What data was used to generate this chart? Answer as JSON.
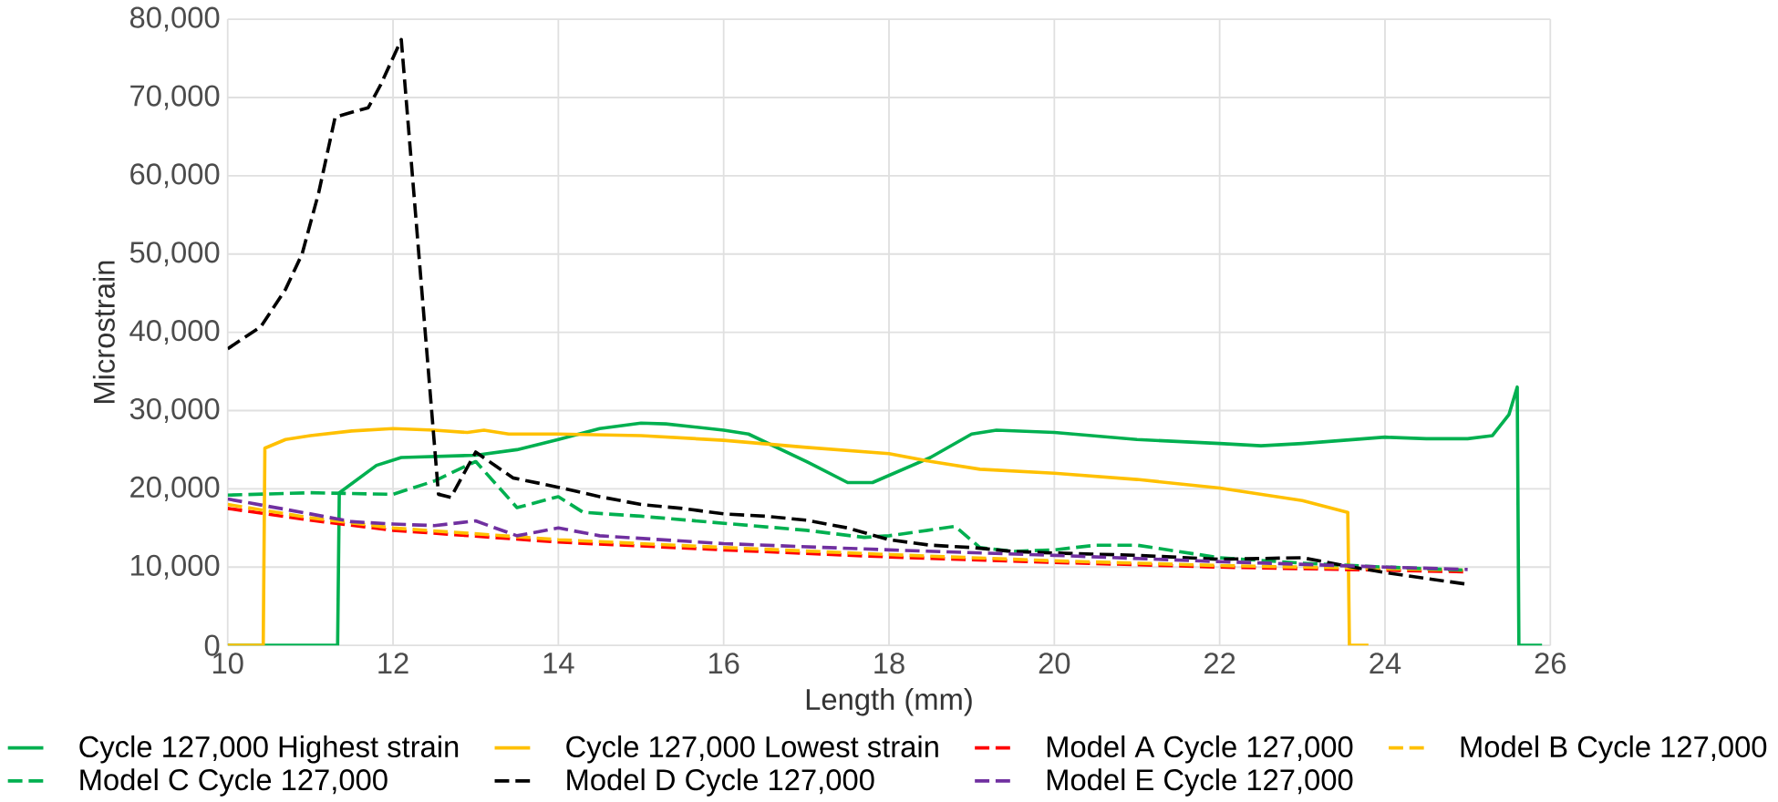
{
  "chart_data": {
    "type": "line",
    "xlabel": "Length (mm)",
    "ylabel": "Microstrain",
    "xlim": [
      10,
      26
    ],
    "xticks": [
      10,
      12,
      14,
      16,
      18,
      20,
      22,
      24,
      26
    ],
    "ylim": [
      0,
      80000
    ],
    "yticks": [
      {
        "value": 0,
        "label": "0"
      },
      {
        "value": 10000,
        "label": "10,000"
      },
      {
        "value": 20000,
        "label": "20,000"
      },
      {
        "value": 30000,
        "label": "30,000"
      },
      {
        "value": 40000,
        "label": "40,000"
      },
      {
        "value": 50000,
        "label": "50,000"
      },
      {
        "value": 60000,
        "label": "60,000"
      },
      {
        "value": 70000,
        "label": "70,000"
      },
      {
        "value": 80000,
        "label": "80,000"
      }
    ],
    "grid": true,
    "legend": "bottom",
    "series": [
      {
        "name": "Cycle 127,000 Highest strain",
        "color": "#00b050",
        "line_style": "solid",
        "x": [
          10,
          11.33,
          11.35,
          11.8,
          12.1,
          13,
          13.5,
          14,
          14.5,
          15,
          15.3,
          16,
          16.3,
          17,
          17.5,
          17.8,
          18.5,
          19,
          19.3,
          20,
          21,
          22,
          22.5,
          23,
          24,
          24.5,
          25,
          25.3,
          25.5,
          25.6,
          25.62,
          25.9
        ],
        "values": [
          0,
          0,
          19500,
          23000,
          24000,
          24300,
          25000,
          26300,
          27700,
          28400,
          28300,
          27500,
          27000,
          23500,
          20800,
          20800,
          24000,
          27000,
          27500,
          27200,
          26300,
          25800,
          25500,
          25800,
          26600,
          26400,
          26400,
          26800,
          29500,
          33000,
          0,
          0
        ]
      },
      {
        "name": "Cycle 127,000 Lowest strain",
        "color": "#ffc000",
        "line_style": "solid",
        "x": [
          10,
          10.43,
          10.45,
          10.7,
          11,
          11.5,
          12,
          12.5,
          12.9,
          13.1,
          13.4,
          14,
          15,
          16,
          17,
          18,
          18.5,
          19.1,
          20,
          21,
          22,
          23,
          23.55,
          23.57,
          23.8
        ],
        "values": [
          0,
          0,
          25200,
          26300,
          26800,
          27400,
          27700,
          27500,
          27200,
          27500,
          27000,
          27000,
          26800,
          26200,
          25300,
          24500,
          23500,
          22500,
          22000,
          21200,
          20100,
          18500,
          17000,
          0,
          0
        ]
      },
      {
        "name": "Model A Cycle 127,000",
        "color": "#ff0000",
        "line_style": "dashed",
        "x": [
          10,
          11,
          12,
          14,
          16,
          18,
          20,
          22,
          24,
          25
        ],
        "values": [
          17500,
          16000,
          14700,
          13200,
          12200,
          11300,
          10600,
          10000,
          9600,
          9400
        ]
      },
      {
        "name": "Model B Cycle 127,000",
        "color": "#ffc000",
        "line_style": "dashed",
        "x": [
          10,
          11,
          12,
          14,
          16,
          18,
          20,
          22,
          24,
          25
        ],
        "values": [
          18000,
          16300,
          15000,
          13500,
          12500,
          11600,
          10800,
          10200,
          9800,
          9600
        ]
      },
      {
        "name": "Model C Cycle 127,000",
        "color": "#00b050",
        "line_style": "dashed",
        "x": [
          10,
          11,
          12,
          12.5,
          13,
          13.5,
          14,
          14.3,
          15,
          16,
          17,
          17.7,
          18,
          18.8,
          19.1,
          19.5,
          20,
          20.5,
          21,
          21.5,
          22,
          23,
          24,
          25
        ],
        "values": [
          19200,
          19500,
          19300,
          21000,
          23500,
          17600,
          19000,
          17000,
          16500,
          15600,
          14700,
          13800,
          14000,
          15200,
          12500,
          12000,
          12200,
          12800,
          12800,
          12000,
          11200,
          10500,
          10000,
          9600
        ]
      },
      {
        "name": "Model D Cycle 127,000",
        "color": "#000000",
        "line_style": "dashed",
        "x": [
          10,
          10.4,
          10.7,
          10.9,
          11.1,
          11.3,
          11.7,
          11.85,
          12.1,
          12.55,
          12.7,
          13,
          13.45,
          14,
          14.5,
          15,
          15.5,
          16,
          16.5,
          17,
          17.5,
          18,
          18.5,
          19,
          19.5,
          20,
          21,
          22,
          23,
          23.5,
          24,
          25
        ],
        "values": [
          37900,
          40700,
          45500,
          50000,
          57800,
          67500,
          68700,
          71600,
          77400,
          19300,
          18900,
          24700,
          21400,
          20200,
          19000,
          18000,
          17500,
          16800,
          16500,
          16000,
          15000,
          13500,
          12800,
          12500,
          12000,
          11800,
          11500,
          11000,
          11200,
          10200,
          9300,
          7800
        ]
      },
      {
        "name": "Model E Cycle 127,000",
        "color": "#7030a0",
        "line_style": "dashed",
        "x": [
          10,
          11,
          11.5,
          12,
          12.5,
          13,
          13.5,
          14,
          14.5,
          16,
          18,
          20,
          22,
          24,
          25
        ],
        "values": [
          18700,
          16800,
          15800,
          15500,
          15300,
          15900,
          14000,
          15000,
          14000,
          13000,
          12200,
          11500,
          10700,
          10000,
          9700
        ]
      }
    ]
  }
}
